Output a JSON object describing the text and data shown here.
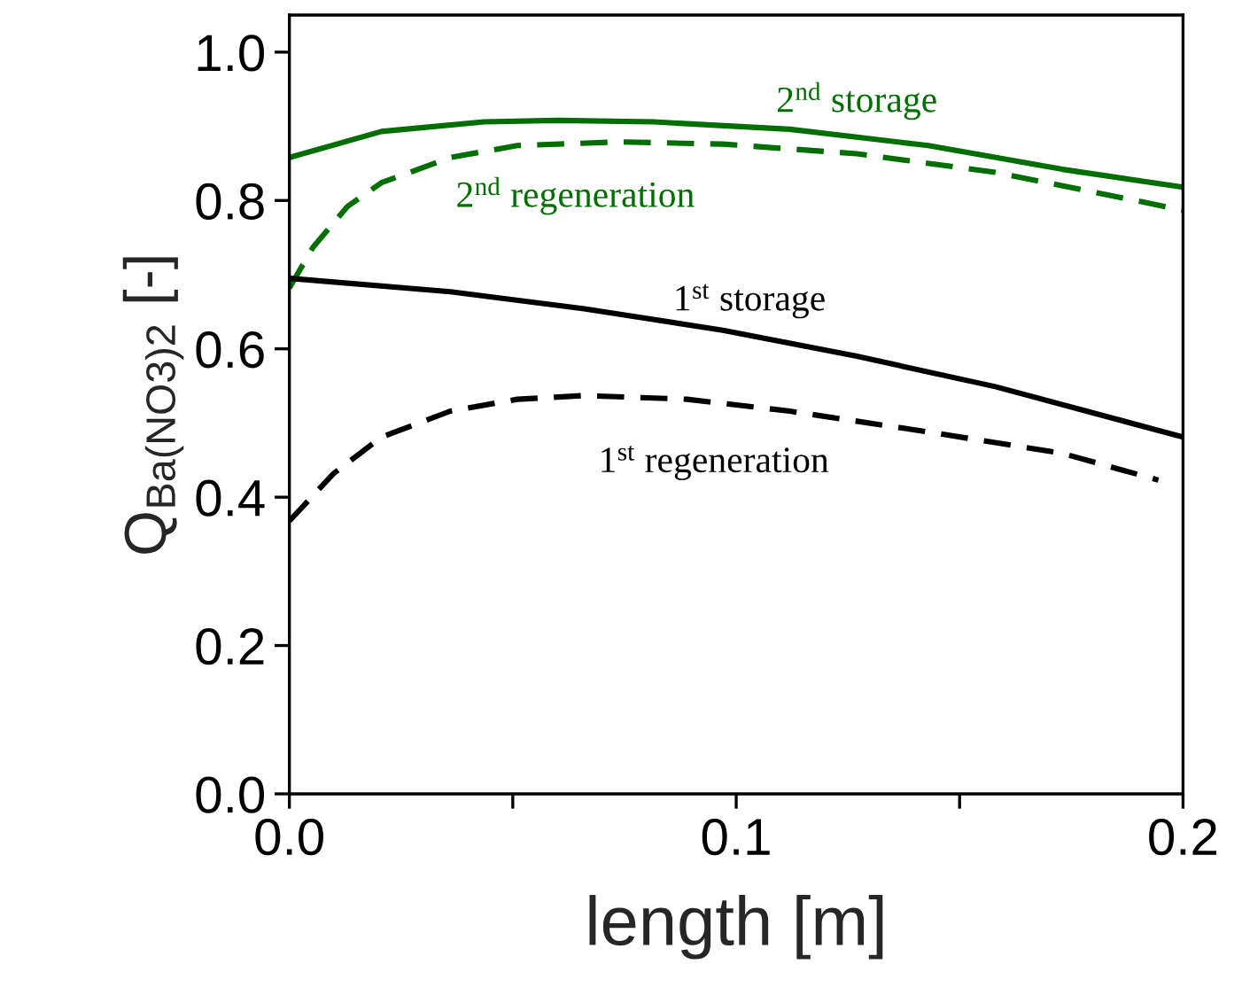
{
  "chart_data": {
    "type": "line",
    "xlabel": "length [m]",
    "ylabel": "Q$_{Ba(NO3)2}$ [-]",
    "xlim": [
      0,
      0.2
    ],
    "ylim": [
      0,
      1.05
    ],
    "xticks": [
      {
        "value": 0,
        "label": "0.0"
      },
      {
        "value": 0.05,
        "label": null
      },
      {
        "value": 0.1,
        "label": "0.1"
      },
      {
        "value": 0.15,
        "label": null
      },
      {
        "value": 0.2,
        "label": "0.2"
      }
    ],
    "yticks": [
      {
        "value": 0,
        "label": "0.0"
      },
      {
        "value": 0.2,
        "label": "0.2"
      },
      {
        "value": 0.4,
        "label": "0.4"
      },
      {
        "value": 0.6,
        "label": "0.6"
      },
      {
        "value": 0.8,
        "label": "0.8"
      },
      {
        "value": 1.0,
        "label": "1.0"
      }
    ],
    "grid": false,
    "legend": false,
    "series": [
      {
        "name": "2$^{nd}$ storage",
        "color": "#006e00",
        "line_style": "solid",
        "x": [
          0,
          0.0206,
          0.0435,
          0.06,
          0.0816,
          0.112,
          0.143,
          0.173,
          0.2
        ],
        "values": [
          0.858,
          0.893,
          0.906,
          0.908,
          0.906,
          0.896,
          0.874,
          0.842,
          0.818
        ]
      },
      {
        "name": "2$^{nd}$ regeneration",
        "color": "#006e00",
        "line_style": "dashed",
        "x": [
          0,
          0.0053,
          0.013,
          0.0206,
          0.036,
          0.051,
          0.074,
          0.097,
          0.127,
          0.158,
          0.2
        ],
        "values": [
          0.682,
          0.737,
          0.792,
          0.824,
          0.858,
          0.874,
          0.879,
          0.876,
          0.863,
          0.838,
          0.787
        ]
      },
      {
        "name": "1$^{st}$ storage",
        "color": "#000000",
        "line_style": "solid",
        "x": [
          0,
          0.036,
          0.066,
          0.097,
          0.127,
          0.158,
          0.2
        ],
        "values": [
          0.695,
          0.677,
          0.654,
          0.625,
          0.59,
          0.549,
          0.481
        ]
      },
      {
        "name": "1$^{st}$ regeneration",
        "color": "#000000",
        "line_style": "dashed",
        "x": [
          0,
          0.0099,
          0.0206,
          0.036,
          0.051,
          0.066,
          0.089,
          0.112,
          0.143,
          0.173,
          0.1945
        ],
        "values": [
          0.368,
          0.432,
          0.481,
          0.516,
          0.532,
          0.537,
          0.532,
          0.516,
          0.488,
          0.459,
          0.423
        ]
      }
    ]
  }
}
